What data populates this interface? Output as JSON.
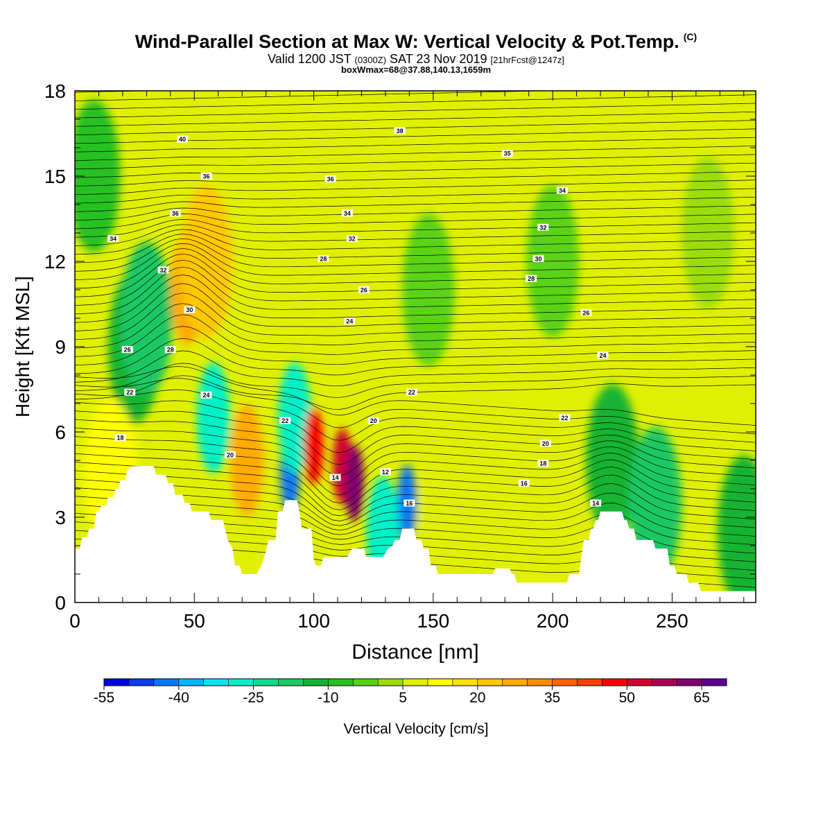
{
  "header": {
    "title": "Wind-Parallel Section at Max W: Vertical Velocity & Pot.Temp.",
    "title_mark": "(C)",
    "valid_prefix": "Valid 1200 JST",
    "valid_utc": "(0300Z)",
    "valid_date": "SAT 23 Nov 2019",
    "valid_fcst": "[21hrFcst@1247z]",
    "box_line": "boxWmax=68@37.88,140.13,1659m"
  },
  "chart_data": {
    "type": "heatmap",
    "title": "Wind-Parallel Section at Max W: Vertical Velocity & Pot.Temp.",
    "xlabel": "Distance [nm]",
    "ylabel": "Height [Kft MSL]",
    "xlim": [
      0,
      285
    ],
    "ylim": [
      0,
      18
    ],
    "xticks": [
      0,
      50,
      100,
      150,
      200,
      250
    ],
    "yticks": [
      0,
      3,
      6,
      9,
      12,
      15,
      18
    ],
    "colorbar": {
      "label": "Vertical Velocity [cm/s]",
      "ticks": [
        -55,
        -40,
        -25,
        -10,
        5,
        20,
        35,
        50,
        65
      ],
      "bins": [
        -55,
        -50,
        -45,
        -40,
        -35,
        -30,
        -25,
        -20,
        -15,
        -10,
        -5,
        0,
        5,
        10,
        15,
        20,
        25,
        30,
        35,
        40,
        45,
        50,
        55,
        60,
        65
      ],
      "colors": [
        "#0000e6",
        "#0a3cf0",
        "#0a78f5",
        "#00b4ff",
        "#00e6f0",
        "#00f0c8",
        "#10dc8c",
        "#1ec864",
        "#14b432",
        "#28c020",
        "#5ad214",
        "#9bdc0a",
        "#e1f000",
        "#ffff00",
        "#ffe100",
        "#ffc800",
        "#ffaa00",
        "#ff8c00",
        "#ff6400",
        "#ff3c00",
        "#ff0000",
        "#d2002d",
        "#aa0050",
        "#82006e",
        "#5a0096"
      ]
    },
    "contour_variable": "Pot.Temp. (C)",
    "contour_labels": [
      40,
      38,
      36,
      34,
      32,
      30,
      28,
      26,
      24,
      22,
      20,
      18,
      16,
      14,
      12
    ],
    "w_cells": [
      {
        "x": 8,
        "y": 15,
        "w": -10
      },
      {
        "x": 25,
        "y": 9,
        "w": -15
      },
      {
        "x": 30,
        "y": 10,
        "w": -20
      },
      {
        "x": 58,
        "y": 6.5,
        "w": -30
      },
      {
        "x": 47,
        "y": 11,
        "w": 25
      },
      {
        "x": 55,
        "y": 12,
        "w": 20
      },
      {
        "x": 72,
        "y": 5,
        "w": 25
      },
      {
        "x": 90,
        "y": 4.5,
        "w": -45
      },
      {
        "x": 92,
        "y": 6.5,
        "w": -30
      },
      {
        "x": 100,
        "y": 5.5,
        "w": 45
      },
      {
        "x": 112,
        "y": 4.8,
        "w": 50
      },
      {
        "x": 117,
        "y": 4.2,
        "w": 63
      },
      {
        "x": 139,
        "y": 3.5,
        "w": -45
      },
      {
        "x": 129,
        "y": 2.5,
        "w": -30
      },
      {
        "x": 98,
        "y": 17,
        "w": 5
      },
      {
        "x": 148,
        "y": 11,
        "w": -5
      },
      {
        "x": 200,
        "y": 12,
        "w": -5
      },
      {
        "x": 225,
        "y": 5,
        "w": -15
      },
      {
        "x": 243,
        "y": 3.5,
        "w": -20
      },
      {
        "x": 280,
        "y": 2.5,
        "w": -15
      },
      {
        "x": 265,
        "y": 13,
        "w": 0
      },
      {
        "x": 185,
        "y": 6,
        "w": 5
      },
      {
        "x": 155,
        "y": 3,
        "w": 5
      },
      {
        "x": 15,
        "y": 4.5,
        "w": 10
      }
    ],
    "terrain": [
      [
        0,
        1.9
      ],
      [
        2,
        1.9
      ],
      [
        3,
        2.3
      ],
      [
        5,
        2.3
      ],
      [
        6,
        2.6
      ],
      [
        8,
        2.6
      ],
      [
        9,
        3.2
      ],
      [
        10,
        3.2
      ],
      [
        11,
        3.4
      ],
      [
        13,
        3.4
      ],
      [
        14,
        3.7
      ],
      [
        16,
        3.7
      ],
      [
        17,
        4.0
      ],
      [
        18,
        4.0
      ],
      [
        19,
        4.3
      ],
      [
        21,
        4.3
      ],
      [
        22,
        4.7
      ],
      [
        23,
        4.7
      ],
      [
        24,
        4.8
      ],
      [
        33,
        4.8
      ],
      [
        34,
        4.5
      ],
      [
        38,
        4.5
      ],
      [
        39,
        4.2
      ],
      [
        41,
        4.2
      ],
      [
        42,
        3.8
      ],
      [
        45,
        3.8
      ],
      [
        46,
        3.5
      ],
      [
        48,
        3.5
      ],
      [
        49,
        3.2
      ],
      [
        56,
        3.2
      ],
      [
        57,
        2.9
      ],
      [
        62,
        2.9
      ],
      [
        64,
        2.2
      ],
      [
        66,
        1.9
      ],
      [
        67,
        1.3
      ],
      [
        69,
        1.3
      ],
      [
        70,
        1.0
      ],
      [
        76,
        1.0
      ],
      [
        78,
        1.3
      ],
      [
        80,
        1.8
      ],
      [
        81,
        2.2
      ],
      [
        84,
        2.2
      ],
      [
        85,
        3.2
      ],
      [
        87,
        3.2
      ],
      [
        88,
        3.6
      ],
      [
        93,
        3.6
      ],
      [
        94,
        3.2
      ],
      [
        95,
        2.6
      ],
      [
        99,
        2.6
      ],
      [
        100,
        1.5
      ],
      [
        101,
        1.3
      ],
      [
        103,
        1.3
      ],
      [
        104,
        1.6
      ],
      [
        114,
        1.6
      ],
      [
        116,
        1.9
      ],
      [
        121,
        1.9
      ],
      [
        122,
        1.6
      ],
      [
        129,
        1.6
      ],
      [
        131,
        1.9
      ],
      [
        133,
        2.0
      ],
      [
        134,
        2.2
      ],
      [
        136,
        2.2
      ],
      [
        137,
        2.6
      ],
      [
        142,
        2.6
      ],
      [
        143,
        2.2
      ],
      [
        145,
        2.2
      ],
      [
        146,
        1.9
      ],
      [
        148,
        1.9
      ],
      [
        149,
        1.3
      ],
      [
        151,
        1.3
      ],
      [
        152,
        1.0
      ],
      [
        175,
        1.0
      ],
      [
        176,
        1.2
      ],
      [
        182,
        1.2
      ],
      [
        183,
        1.0
      ],
      [
        184,
        1.0
      ],
      [
        185,
        0.7
      ],
      [
        206,
        0.7
      ],
      [
        207,
        1.0
      ],
      [
        211,
        1.0
      ],
      [
        212,
        1.6
      ],
      [
        213,
        2.2
      ],
      [
        215,
        2.2
      ],
      [
        216,
        2.6
      ],
      [
        217,
        2.6
      ],
      [
        218,
        2.9
      ],
      [
        219,
        2.9
      ],
      [
        220,
        3.2
      ],
      [
        229,
        3.2
      ],
      [
        230,
        2.9
      ],
      [
        231,
        2.9
      ],
      [
        232,
        2.6
      ],
      [
        234,
        2.6
      ],
      [
        235,
        2.2
      ],
      [
        242,
        2.2
      ],
      [
        243,
        1.9
      ],
      [
        248,
        1.9
      ],
      [
        249,
        1.3
      ],
      [
        251,
        1.3
      ],
      [
        252,
        1.0
      ],
      [
        256,
        1.0
      ],
      [
        257,
        0.7
      ],
      [
        261,
        0.7
      ],
      [
        262,
        0.4
      ],
      [
        285,
        0.4
      ]
    ]
  }
}
